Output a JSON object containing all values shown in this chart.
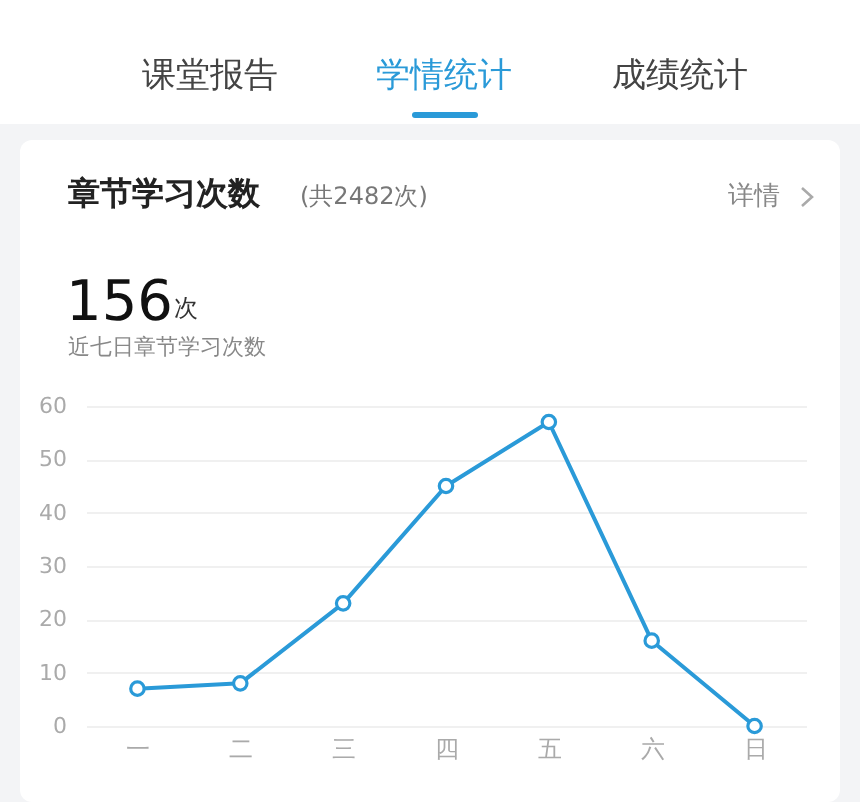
{
  "chart_data": {
    "type": "line",
    "title": "章节学习次数",
    "subtitle": "(共2482次)",
    "annotations": [
      "课堂报告",
      "学情统计",
      "成绩统计",
      "详情",
      "156",
      "次",
      "近七日章节学习次数"
    ],
    "categories": [
      "一",
      "二",
      "三",
      "四",
      "五",
      "六",
      "日"
    ],
    "series": [
      {
        "color": "#2a9ad8",
        "values": [
          7,
          8,
          23,
          45,
          57,
          16,
          0
        ]
      }
    ],
    "ylim": [
      0,
      60
    ],
    "yticks": [
      0,
      10,
      20,
      30,
      40,
      50,
      60
    ],
    "grid": "y",
    "marker": "circle",
    "line_style": "solid"
  }
}
